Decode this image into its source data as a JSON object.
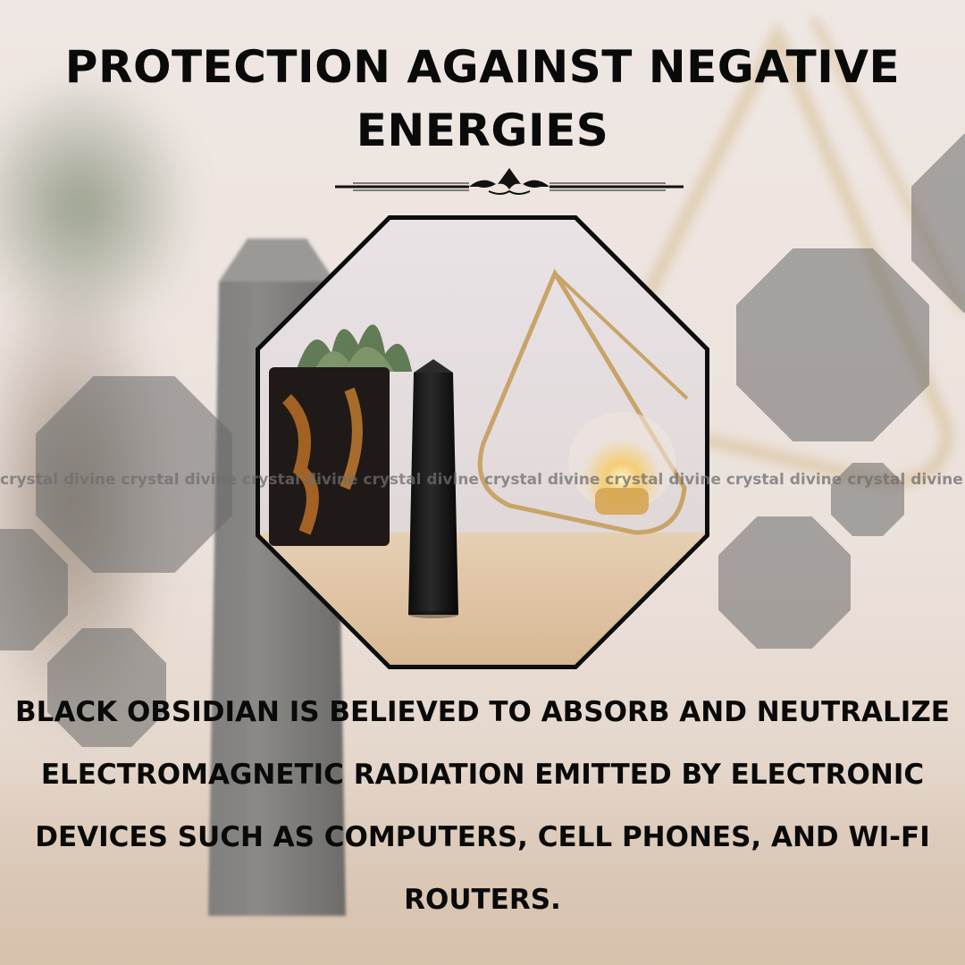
{
  "title": "PROTECTION AGAINST NEGATIVE ENERGIES",
  "watermark": "crystal divine crystal divine crystal divine crystal divine crystal divine crystal divine crystal divine crystal divine",
  "body": "BLACK OBSIDIAN IS BELIEVED TO ABSORB AND NEUTRALIZE ELECTROMAGNETIC RADIATION EMITTED BY ELECTRONIC DEVICES SUCH AS COMPUTERS, CELL PHONES, AND WI-FI ROUTERS.",
  "colors": {
    "text": "#0a0a0a",
    "octagon_overlay": "#696969",
    "obsidian": "#1a1a1a",
    "brass": "#c8a468"
  },
  "icons": [
    "ornament-divider-icon"
  ]
}
